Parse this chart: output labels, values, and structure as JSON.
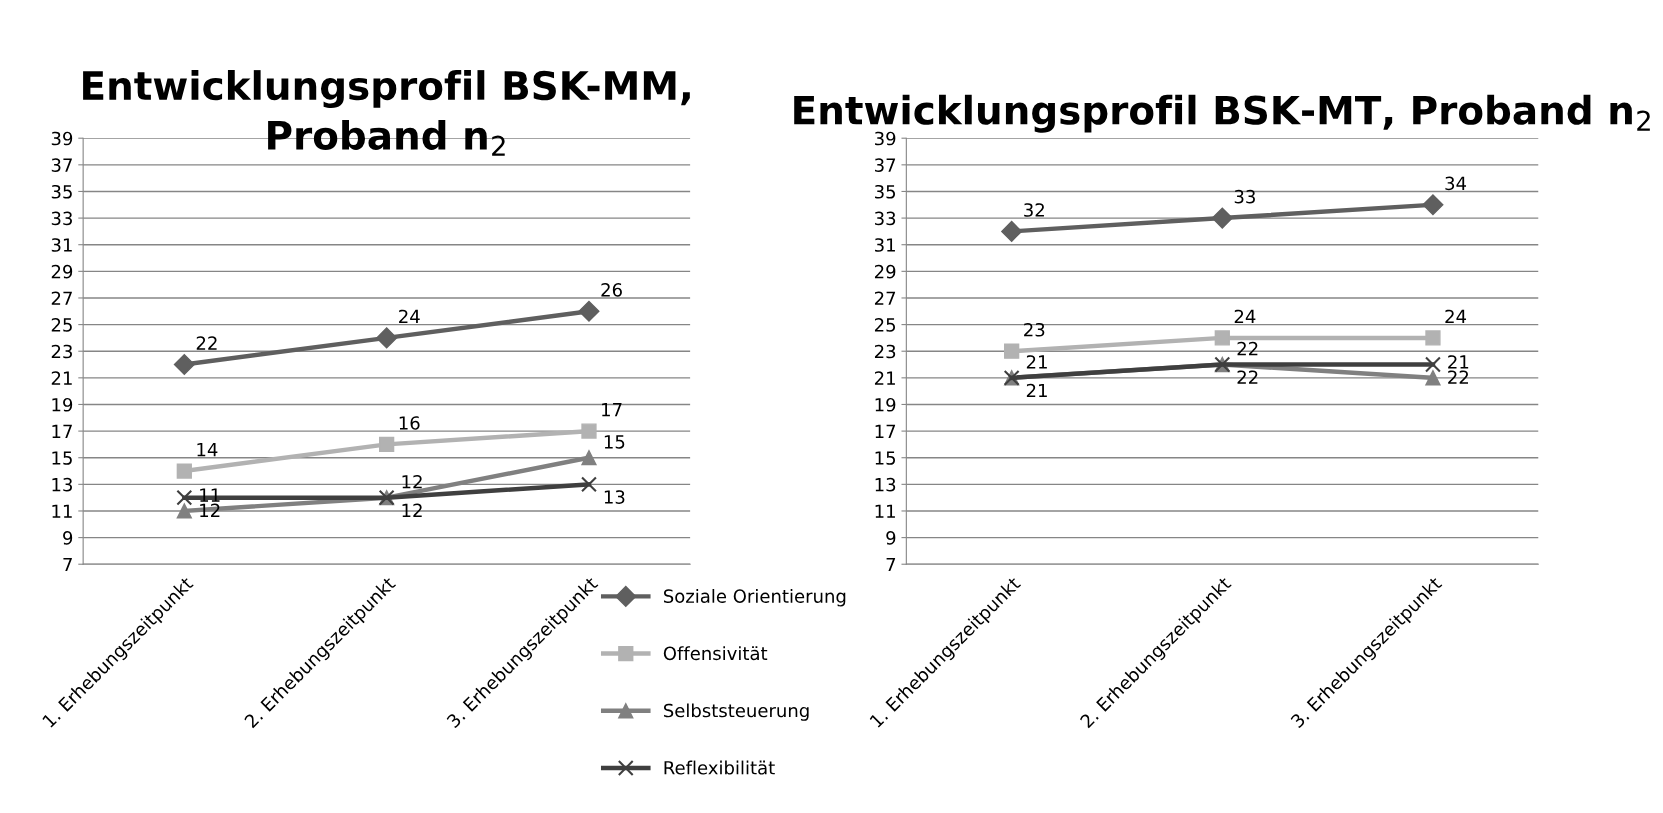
{
  "chart_data": [
    {
      "type": "line",
      "title": "Entwicklungsprofil BSK-MM, Proband n$_{2}$",
      "categories": [
        "1. Erhebungszeitpunkt",
        "2. Erhebungszeitpunkt",
        "3. Erhebungszeitpunkt"
      ],
      "ylim": [
        7,
        39
      ],
      "yticks": [
        7,
        9,
        11,
        13,
        15,
        17,
        19,
        21,
        23,
        25,
        27,
        29,
        31,
        33,
        35,
        37,
        39
      ],
      "grid": "y",
      "legend": "bottom right",
      "data_labels": true,
      "series": [
        {
          "name": "Soziale Orientierung",
          "color": "#5f5f5f",
          "marker": "diamond",
          "values": [
            22,
            24,
            26
          ]
        },
        {
          "name": "Offensivität",
          "color": "#b2b2b2",
          "marker": "square",
          "values": [
            14,
            16,
            17
          ]
        },
        {
          "name": "Selbststeuerung",
          "color": "#808080",
          "marker": "triangle",
          "values": [
            11,
            12,
            15
          ]
        },
        {
          "name": "Reflexibilität",
          "color": "#3f3f3f",
          "marker": "cross",
          "values": [
            12,
            12,
            13
          ]
        }
      ]
    },
    {
      "type": "line",
      "title": "Entwicklungsprofil BSK-MT, Proband n$_{2}$",
      "categories": [
        "1. Erhebungszeitpunkt",
        "2. Erhebungszeitpunkt",
        "3. Erhebungszeitpunkt"
      ],
      "ylim": [
        7,
        39
      ],
      "yticks": [
        7,
        9,
        11,
        13,
        15,
        17,
        19,
        21,
        23,
        25,
        27,
        29,
        31,
        33,
        35,
        37,
        39
      ],
      "grid": "y",
      "data_labels": true,
      "series": [
        {
          "color": "#5f5f5f",
          "marker": "diamond",
          "values": [
            32,
            33,
            34
          ]
        },
        {
          "color": "#b2b2b2",
          "marker": "square",
          "values": [
            23,
            24,
            24
          ]
        },
        {
          "color": "#808080",
          "marker": "triangle",
          "values": [
            21,
            22,
            21
          ]
        },
        {
          "color": "#3f3f3f",
          "marker": "cross",
          "values": [
            21,
            22,
            22
          ]
        }
      ]
    }
  ]
}
